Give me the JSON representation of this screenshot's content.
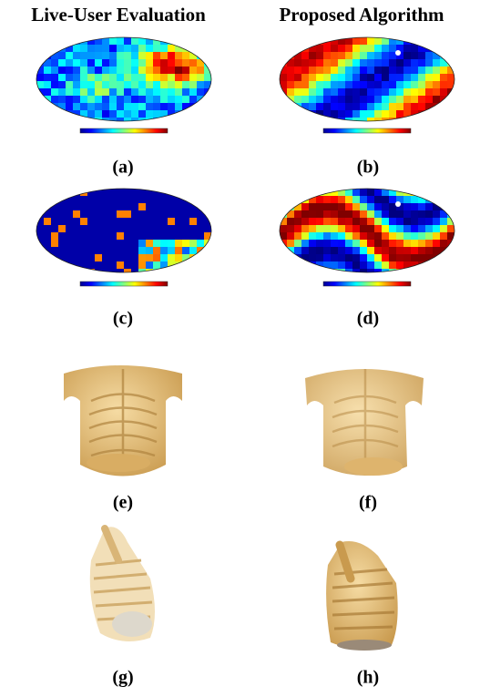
{
  "headers": [
    "Live-User Evaluation",
    "Proposed Algorithm"
  ],
  "panels": [
    {
      "label": "(a)"
    },
    {
      "label": "(b)"
    },
    {
      "label": "(c)"
    },
    {
      "label": "(d)"
    },
    {
      "label": "(e)"
    },
    {
      "label": "(f)"
    },
    {
      "label": "(g)"
    },
    {
      "label": "(h)"
    }
  ]
}
